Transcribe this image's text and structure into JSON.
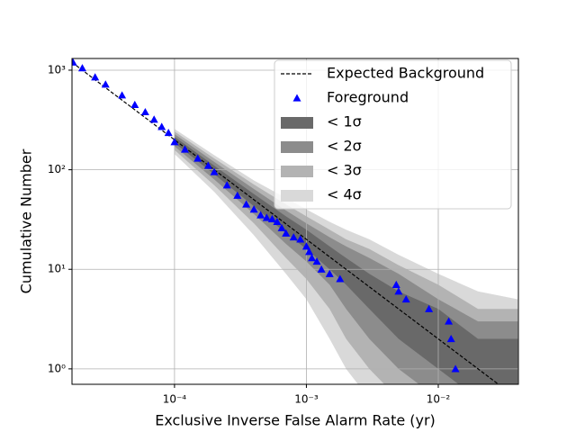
{
  "chart_data": {
    "type": "line",
    "xlabel": "Exclusive Inverse False Alarm Rate (yr)",
    "ylabel": "Cumulative Number",
    "xscale": "log",
    "yscale": "log",
    "grid": true,
    "legend_loc": "upper right",
    "xlim": [
      1.67e-05,
      0.0405
    ],
    "ylim": [
      0.7,
      1310
    ],
    "xticks": [
      {
        "value": 0.0001,
        "label": "10⁻⁴"
      },
      {
        "value": 0.001,
        "label": "10⁻³"
      },
      {
        "value": 0.01,
        "label": "10⁻²"
      }
    ],
    "yticks": [
      {
        "value": 1,
        "label": "10⁰"
      },
      {
        "value": 10,
        "label": "10¹"
      },
      {
        "value": 100,
        "label": "10²"
      },
      {
        "value": 1000,
        "label": "10³"
      }
    ],
    "band_x": [
      0.0001,
      0.0002,
      0.0004,
      0.0007,
      0.001,
      0.0015,
      0.002,
      0.003,
      0.005,
      0.01,
      0.02,
      0.04
    ],
    "bands": [
      {
        "name": "< 4σ",
        "color": "#d9d9d9",
        "lower": [
          144,
          60,
          22,
          9,
          5,
          2,
          1,
          0.5,
          0.5,
          0.5,
          0.5,
          0.5
        ],
        "upper": [
          257,
          140,
          78,
          52,
          40,
          30,
          25,
          20,
          14,
          9,
          6,
          5
        ]
      },
      {
        "name": "< 3σ",
        "color": "#b3b3b3",
        "lower": [
          158,
          70,
          29,
          13,
          8,
          4,
          2,
          1,
          0.5,
          0.5,
          0.5,
          0.5
        ],
        "upper": [
          242,
          130,
          71,
          45,
          34,
          25,
          20,
          16,
          11,
          7,
          4,
          4
        ]
      },
      {
        "name": "< 2σ",
        "color": "#8c8c8c",
        "lower": [
          172,
          80,
          36,
          18,
          12,
          7,
          4,
          2,
          1,
          0.5,
          0.5,
          0.5
        ],
        "upper": [
          228,
          120,
          64,
          39,
          29,
          21,
          17,
          13,
          9,
          5,
          3,
          3
        ]
      },
      {
        "name": "< 1σ",
        "color": "#696969",
        "lower": [
          186,
          90,
          43,
          23,
          16,
          10,
          7,
          4,
          2,
          1,
          0.5,
          0.5
        ],
        "upper": [
          214,
          110,
          57,
          34,
          25,
          17,
          13,
          9,
          6,
          4,
          2,
          2
        ]
      }
    ],
    "series": [
      {
        "name": "Expected Background",
        "color": "#000000",
        "linestyle": "dashed",
        "x": [
          1.67e-05,
          0.0001,
          0.001,
          0.01,
          0.0286
        ],
        "values": [
          1198,
          200,
          20,
          2,
          0.7
        ]
      },
      {
        "name": "Foreground",
        "color": "#0000ff",
        "marker": "triangle",
        "x": [
          1.7e-05,
          2e-05,
          2.5e-05,
          3e-05,
          4e-05,
          5e-05,
          6e-05,
          7e-05,
          8e-05,
          9e-05,
          0.0001,
          0.00012,
          0.00015,
          0.00018,
          0.0002,
          0.00025,
          0.0003,
          0.00035,
          0.0004,
          0.00045,
          0.0005,
          0.00055,
          0.0006,
          0.00065,
          0.0007,
          0.0008,
          0.0009,
          0.001,
          0.00105,
          0.0011,
          0.0012,
          0.0013,
          0.0015,
          0.0018,
          0.0048,
          0.005,
          0.0057,
          0.0085,
          0.012,
          0.0125,
          0.0135
        ],
        "values": [
          1200,
          1050,
          850,
          720,
          560,
          450,
          380,
          320,
          270,
          235,
          190,
          160,
          130,
          110,
          95,
          70,
          55,
          45,
          40,
          35,
          33,
          32,
          30,
          26,
          23,
          21,
          20,
          17,
          15,
          13,
          12,
          10,
          9,
          8,
          7,
          6,
          5,
          4,
          3,
          2,
          1
        ]
      }
    ]
  }
}
